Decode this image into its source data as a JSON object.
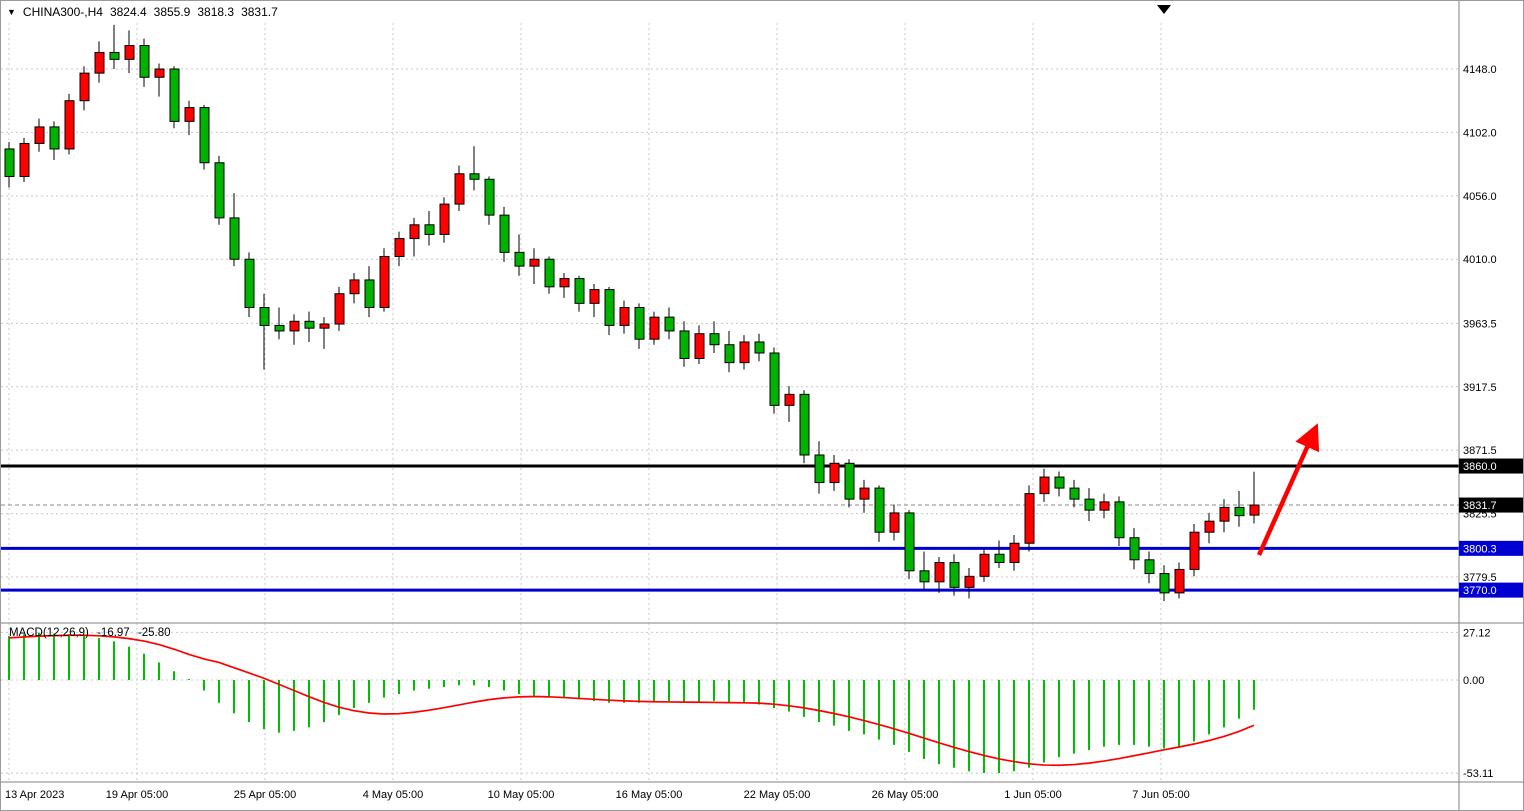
{
  "header": {
    "symbol": "CHINA300-,H4",
    "open": "3824.4",
    "high": "3855.9",
    "low": "3818.3",
    "close": "3831.7"
  },
  "colors": {
    "background": "#FFFFFF",
    "bull_candle": "#FF0000",
    "bear_candle": "#00B300",
    "candle_outline": "#000000",
    "histogram": "#00BE00",
    "signal_line": "#FF0000",
    "level_black": "#000000",
    "level_blue": "#0000D2",
    "arrow": "#FF0000",
    "grid": "#C8C8C8",
    "separator": "#808080",
    "axis_text": "#000000",
    "badge_text": "#FFFFFF"
  },
  "chart_data": {
    "type": "candlestick",
    "symbol": "CHINA300-",
    "timeframe": "H4",
    "ohlc_current": {
      "open": 3824.4,
      "high": 3855.9,
      "low": 3818.3,
      "close": 3831.7
    },
    "price_axis": {
      "ticks": [
        {
          "v": 4148.0,
          "label": "4148.0"
        },
        {
          "v": 4102.0,
          "label": "4102.0"
        },
        {
          "v": 4056.0,
          "label": "4056.0"
        },
        {
          "v": 4010.0,
          "label": "4010.0"
        },
        {
          "v": 3963.5,
          "label": "3963.5"
        },
        {
          "v": 3917.5,
          "label": "3917.5"
        },
        {
          "v": 3871.5,
          "label": "3871.5"
        },
        {
          "v": 3825.5,
          "label": "3825.5"
        },
        {
          "v": 3779.5,
          "label": "3779.5"
        }
      ]
    },
    "time_axis": {
      "labels": [
        "13 Apr 2023",
        "19 Apr 05:00",
        "25 Apr 05:00",
        "4 May 05:00",
        "10 May 05:00",
        "16 May 05:00",
        "22 May 05:00",
        "26 May 05:00",
        "1 Jun 05:00",
        "7 Jun 05:00"
      ]
    },
    "levels": [
      {
        "v": 3860.0,
        "label": "3860.0",
        "color_key": "level_black",
        "width": 3
      },
      {
        "v": 3800.3,
        "label": "3800.3",
        "color_key": "level_blue",
        "width": 3
      },
      {
        "v": 3770.0,
        "label": "3770.0",
        "color_key": "level_blue",
        "width": 3
      }
    ],
    "current_price": {
      "v": 3831.7,
      "label": "3831.7"
    },
    "candles": [
      [
        4090,
        4095,
        4062,
        4070
      ],
      [
        4070,
        4098,
        4066,
        4094
      ],
      [
        4094,
        4112,
        4088,
        4106
      ],
      [
        4106,
        4110,
        4082,
        4090
      ],
      [
        4090,
        4130,
        4086,
        4125
      ],
      [
        4125,
        4150,
        4118,
        4145
      ],
      [
        4145,
        4168,
        4138,
        4160
      ],
      [
        4160,
        4180,
        4148,
        4155
      ],
      [
        4155,
        4176,
        4145,
        4165
      ],
      [
        4165,
        4170,
        4135,
        4142
      ],
      [
        4142,
        4152,
        4128,
        4148
      ],
      [
        4148,
        4150,
        4105,
        4110
      ],
      [
        4110,
        4125,
        4100,
        4120
      ],
      [
        4120,
        4122,
        4075,
        4080
      ],
      [
        4080,
        4085,
        4035,
        4040
      ],
      [
        4040,
        4058,
        4005,
        4010
      ],
      [
        4010,
        4015,
        3968,
        3975
      ],
      [
        3975,
        3985,
        3930,
        3962
      ],
      [
        3962,
        3975,
        3952,
        3958
      ],
      [
        3958,
        3970,
        3948,
        3965
      ],
      [
        3965,
        3972,
        3950,
        3960
      ],
      [
        3960,
        3968,
        3945,
        3963
      ],
      [
        3963,
        3990,
        3958,
        3985
      ],
      [
        3985,
        4000,
        3978,
        3995
      ],
      [
        3995,
        4005,
        3968,
        3975
      ],
      [
        3975,
        4018,
        3972,
        4012
      ],
      [
        4012,
        4030,
        4005,
        4025
      ],
      [
        4025,
        4040,
        4012,
        4035
      ],
      [
        4035,
        4045,
        4020,
        4028
      ],
      [
        4028,
        4055,
        4022,
        4050
      ],
      [
        4050,
        4078,
        4045,
        4072
      ],
      [
        4072,
        4092,
        4060,
        4068
      ],
      [
        4068,
        4070,
        4035,
        4042
      ],
      [
        4042,
        4048,
        4008,
        4015
      ],
      [
        4015,
        4028,
        3998,
        4005
      ],
      [
        4005,
        4018,
        3992,
        4010
      ],
      [
        4010,
        4012,
        3985,
        3990
      ],
      [
        3990,
        4000,
        3982,
        3996
      ],
      [
        3996,
        3998,
        3972,
        3978
      ],
      [
        3978,
        3992,
        3968,
        3988
      ],
      [
        3988,
        3990,
        3955,
        3962
      ],
      [
        3962,
        3980,
        3956,
        3975
      ],
      [
        3975,
        3978,
        3945,
        3952
      ],
      [
        3952,
        3972,
        3948,
        3968
      ],
      [
        3968,
        3975,
        3952,
        3958
      ],
      [
        3958,
        3965,
        3932,
        3938
      ],
      [
        3938,
        3962,
        3934,
        3956
      ],
      [
        3956,
        3965,
        3942,
        3948
      ],
      [
        3948,
        3958,
        3928,
        3935
      ],
      [
        3935,
        3955,
        3930,
        3950
      ],
      [
        3950,
        3956,
        3936,
        3942
      ],
      [
        3942,
        3946,
        3898,
        3904
      ],
      [
        3904,
        3918,
        3892,
        3912
      ],
      [
        3912,
        3915,
        3862,
        3868
      ],
      [
        3868,
        3878,
        3840,
        3848
      ],
      [
        3848,
        3868,
        3842,
        3862
      ],
      [
        3862,
        3865,
        3830,
        3836
      ],
      [
        3836,
        3850,
        3826,
        3844
      ],
      [
        3844,
        3846,
        3805,
        3812
      ],
      [
        3812,
        3832,
        3806,
        3826
      ],
      [
        3826,
        3828,
        3778,
        3784
      ],
      [
        3784,
        3798,
        3770,
        3776
      ],
      [
        3776,
        3794,
        3768,
        3790
      ],
      [
        3790,
        3796,
        3766,
        3772
      ],
      [
        3772,
        3786,
        3764,
        3780
      ],
      [
        3780,
        3800,
        3776,
        3796
      ],
      [
        3796,
        3806,
        3786,
        3790
      ],
      [
        3790,
        3810,
        3784,
        3804
      ],
      [
        3804,
        3846,
        3798,
        3840
      ],
      [
        3840,
        3858,
        3834,
        3852
      ],
      [
        3852,
        3856,
        3838,
        3844
      ],
      [
        3844,
        3850,
        3830,
        3836
      ],
      [
        3836,
        3844,
        3820,
        3828
      ],
      [
        3828,
        3840,
        3822,
        3834
      ],
      [
        3834,
        3838,
        3802,
        3808
      ],
      [
        3808,
        3815,
        3785,
        3792
      ],
      [
        3792,
        3798,
        3775,
        3782
      ],
      [
        3782,
        3788,
        3762,
        3768
      ],
      [
        3768,
        3790,
        3764,
        3785
      ],
      [
        3785,
        3818,
        3780,
        3812
      ],
      [
        3812,
        3826,
        3804,
        3820
      ],
      [
        3820,
        3836,
        3812,
        3830
      ],
      [
        3830,
        3842,
        3816,
        3824
      ],
      [
        3824.4,
        3855.9,
        3818.3,
        3831.7
      ]
    ],
    "macd": {
      "label": "MACD(12,26,9)",
      "value": "-16.97",
      "signal_value": "-25.80",
      "axis_ticks": [
        {
          "v": 27.12,
          "label": "27.12"
        },
        {
          "v": 0,
          "label": "0.00"
        },
        {
          "v": -53.11,
          "label": "-53.11"
        }
      ],
      "histogram": [
        25,
        26,
        27,
        26.5,
        26,
        25,
        24,
        22,
        19,
        15,
        10,
        5,
        0,
        -6,
        -13,
        -19,
        -24,
        -28,
        -30,
        -29,
        -27,
        -24,
        -20,
        -16,
        -13,
        -10,
        -8,
        -6,
        -5,
        -4,
        -3,
        -3,
        -4,
        -6,
        -8,
        -9,
        -10,
        -10,
        -11,
        -12,
        -13,
        -13,
        -13,
        -12,
        -12,
        -13,
        -13,
        -12,
        -13,
        -13,
        -14,
        -16,
        -18,
        -21,
        -24,
        -26,
        -29,
        -31,
        -34,
        -37,
        -41,
        -45,
        -48,
        -50,
        -52,
        -53,
        -53,
        -52,
        -50,
        -47,
        -44,
        -42,
        -40,
        -38,
        -37,
        -37,
        -38,
        -39,
        -38,
        -35,
        -31,
        -27,
        -22,
        -16.97
      ],
      "signal": [
        24,
        24.5,
        25,
        25.3,
        25.5,
        25.5,
        25.2,
        24.6,
        23.6,
        22.2,
        20.2,
        17.6,
        14.6,
        12,
        10,
        7,
        4,
        1,
        -2.5,
        -6,
        -9.5,
        -12.8,
        -15.5,
        -17.5,
        -18.8,
        -19.4,
        -19.2,
        -18.4,
        -17.2,
        -15.8,
        -14.2,
        -12.6,
        -11.2,
        -10.2,
        -9.6,
        -9.4,
        -9.6,
        -10,
        -10.5,
        -11,
        -11.5,
        -11.9,
        -12.2,
        -12.4,
        -12.5,
        -12.6,
        -12.7,
        -12.8,
        -12.9,
        -13,
        -13.2,
        -13.8,
        -14.7,
        -15.9,
        -17.4,
        -19.1,
        -21,
        -23.1,
        -25.4,
        -27.8,
        -30.4,
        -33.1,
        -35.8,
        -38.4,
        -40.8,
        -43,
        -45,
        -46.5,
        -47.8,
        -48.5,
        -48.6,
        -48.2,
        -47.4,
        -46.2,
        -44.8,
        -43.2,
        -41.5,
        -39.8,
        -38.2,
        -36.5,
        -34.5,
        -32.2,
        -29.3,
        -25.8
      ]
    }
  }
}
